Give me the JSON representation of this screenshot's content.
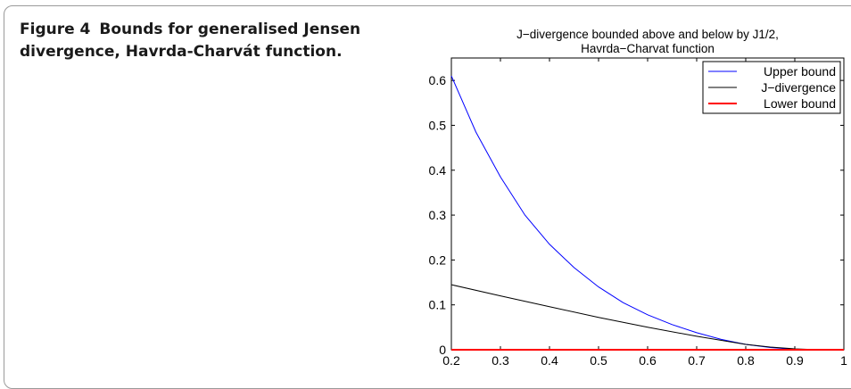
{
  "caption": {
    "label": "Figure 4",
    "text": "Bounds for generalised Jensen divergence, Havrda-Charvát function."
  },
  "chart_data": {
    "type": "line",
    "title_lines": [
      "J−divergence bounded above and below by J1/2,",
      "Havrda−Charvat function"
    ],
    "xlim": [
      0.2,
      1
    ],
    "ylim": [
      0,
      0.65
    ],
    "x_ticks": [
      "0.2",
      "0.3",
      "0.4",
      "0.5",
      "0.6",
      "0.7",
      "0.8",
      "0.9",
      "1"
    ],
    "y_ticks": [
      "0",
      "0.1",
      "0.2",
      "0.3",
      "0.4",
      "0.5",
      "0.6"
    ],
    "grid": false,
    "legend_position": "top-right",
    "series": [
      {
        "name": "Upper bound",
        "color": "#0000ff",
        "x": [
          0.2,
          0.25,
          0.3,
          0.35,
          0.4,
          0.45,
          0.5,
          0.55,
          0.6,
          0.65,
          0.7,
          0.75,
          0.8,
          0.85,
          0.9,
          0.95,
          1.0
        ],
        "y": [
          0.61,
          0.485,
          0.385,
          0.3,
          0.235,
          0.183,
          0.14,
          0.105,
          0.078,
          0.056,
          0.038,
          0.023,
          0.012,
          0.005,
          0.001,
          0.0,
          0.0
        ]
      },
      {
        "name": "J−divergence",
        "color": "#000000",
        "x": [
          0.2,
          0.3,
          0.4,
          0.5,
          0.6,
          0.7,
          0.8,
          0.85,
          0.9,
          0.95,
          1.0
        ],
        "y": [
          0.145,
          0.12,
          0.096,
          0.072,
          0.05,
          0.03,
          0.012,
          0.006,
          0.002,
          0.0,
          0.0
        ]
      },
      {
        "name": "Lower bound",
        "color": "#ff0000",
        "x": [
          0.2,
          0.4,
          0.6,
          0.8,
          1.0
        ],
        "y": [
          0.0,
          0.0,
          0.0,
          0.0,
          0.0
        ]
      }
    ]
  }
}
